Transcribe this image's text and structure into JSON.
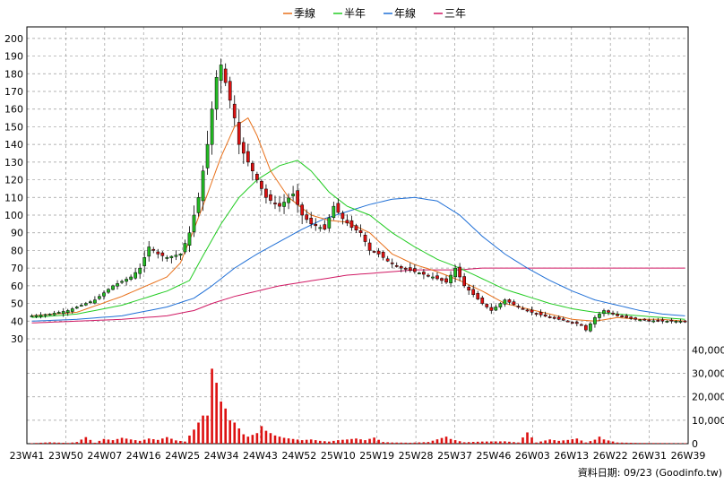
{
  "chart_data": {
    "type": "candlestick",
    "legend": [
      {
        "name": "季線",
        "color": "#e8701a"
      },
      {
        "name": "半年",
        "color": "#22cc22"
      },
      {
        "name": "年線",
        "color": "#1f6fd6"
      },
      {
        "name": "三年",
        "color": "#d01863"
      }
    ],
    "legend_position": "top-center",
    "grid": true,
    "price_axis": {
      "position": "left",
      "ticks": [
        30,
        40,
        50,
        60,
        70,
        80,
        90,
        100,
        110,
        120,
        130,
        140,
        150,
        160,
        170,
        180,
        190,
        200
      ],
      "range": [
        30,
        205
      ]
    },
    "volume_axis": {
      "position": "right",
      "ticks": [
        0,
        10000,
        20000,
        30000,
        40000
      ],
      "tick_labels": [
        "0",
        "10,000",
        "20,000",
        "30,000",
        "40,000"
      ],
      "range": [
        0,
        44000
      ]
    },
    "x_tick_labels": [
      "23W41",
      "23W50",
      "24W07",
      "24W16",
      "24W25",
      "24W34",
      "24W43",
      "24W52",
      "25W10",
      "25W19",
      "25W28",
      "25W37",
      "25W46",
      "26W03",
      "26W13",
      "26W22",
      "26W31",
      "26W39"
    ],
    "colors": {
      "up": "#22bb22",
      "down": "#dd1111",
      "volume": "#dd1111",
      "grid": "#9a9a9a"
    },
    "series_anchor_points": {
      "close": [
        [
          0,
          43
        ],
        [
          4,
          44
        ],
        [
          8,
          46
        ],
        [
          10,
          48
        ],
        [
          14,
          52
        ],
        [
          18,
          60
        ],
        [
          22,
          65
        ],
        [
          24,
          70
        ],
        [
          26,
          82
        ],
        [
          28,
          78
        ],
        [
          30,
          76
        ],
        [
          33,
          78
        ],
        [
          35,
          90
        ],
        [
          37,
          110
        ],
        [
          39,
          140
        ],
        [
          40,
          160
        ],
        [
          41,
          178
        ],
        [
          42,
          185
        ],
        [
          43,
          175
        ],
        [
          44,
          165
        ],
        [
          45,
          155
        ],
        [
          46,
          140
        ],
        [
          48,
          130
        ],
        [
          50,
          120
        ],
        [
          52,
          110
        ],
        [
          55,
          105
        ],
        [
          58,
          112
        ],
        [
          60,
          100
        ],
        [
          62,
          95
        ],
        [
          65,
          92
        ],
        [
          67,
          105
        ],
        [
          69,
          98
        ],
        [
          71,
          93
        ],
        [
          73,
          90
        ],
        [
          75,
          80
        ],
        [
          77,
          78
        ],
        [
          79,
          74
        ],
        [
          82,
          70
        ],
        [
          85,
          68
        ],
        [
          89,
          65
        ],
        [
          92,
          62
        ],
        [
          94,
          70
        ],
        [
          96,
          60
        ],
        [
          98,
          55
        ],
        [
          100,
          50
        ],
        [
          102,
          46
        ],
        [
          105,
          52
        ],
        [
          108,
          48
        ],
        [
          111,
          45
        ],
        [
          115,
          42
        ],
        [
          119,
          40
        ],
        [
          122,
          38
        ],
        [
          123,
          35
        ],
        [
          125,
          42
        ],
        [
          127,
          46
        ],
        [
          130,
          43
        ],
        [
          134,
          41
        ],
        [
          139,
          40
        ],
        [
          143,
          40
        ],
        [
          145,
          40
        ]
      ],
      "ma_quarter": [
        [
          0,
          43
        ],
        [
          10,
          45
        ],
        [
          20,
          54
        ],
        [
          30,
          65
        ],
        [
          33,
          73
        ],
        [
          36,
          92
        ],
        [
          39,
          112
        ],
        [
          42,
          133
        ],
        [
          45,
          150
        ],
        [
          48,
          155
        ],
        [
          50,
          145
        ],
        [
          53,
          125
        ],
        [
          57,
          110
        ],
        [
          62,
          100
        ],
        [
          66,
          97
        ],
        [
          70,
          96
        ],
        [
          75,
          90
        ],
        [
          80,
          78
        ],
        [
          85,
          72
        ],
        [
          90,
          68
        ],
        [
          95,
          63
        ],
        [
          100,
          57
        ],
        [
          105,
          50
        ],
        [
          110,
          47
        ],
        [
          115,
          44
        ],
        [
          120,
          41
        ],
        [
          125,
          40
        ],
        [
          130,
          42
        ],
        [
          135,
          41
        ],
        [
          140,
          41
        ],
        [
          145,
          40
        ]
      ],
      "ma_half": [
        [
          0,
          42
        ],
        [
          10,
          44
        ],
        [
          20,
          49
        ],
        [
          30,
          57
        ],
        [
          35,
          63
        ],
        [
          38,
          77
        ],
        [
          42,
          95
        ],
        [
          46,
          110
        ],
        [
          50,
          120
        ],
        [
          55,
          128
        ],
        [
          59,
          131
        ],
        [
          62,
          125
        ],
        [
          66,
          113
        ],
        [
          70,
          105
        ],
        [
          75,
          100
        ],
        [
          80,
          90
        ],
        [
          85,
          82
        ],
        [
          90,
          75
        ],
        [
          95,
          70
        ],
        [
          100,
          64
        ],
        [
          105,
          58
        ],
        [
          110,
          54
        ],
        [
          115,
          50
        ],
        [
          120,
          47
        ],
        [
          125,
          45
        ],
        [
          130,
          44
        ],
        [
          135,
          43
        ],
        [
          140,
          42
        ],
        [
          145,
          41
        ]
      ],
      "ma_year": [
        [
          0,
          40
        ],
        [
          10,
          41
        ],
        [
          20,
          43
        ],
        [
          30,
          48
        ],
        [
          36,
          53
        ],
        [
          40,
          60
        ],
        [
          45,
          70
        ],
        [
          50,
          78
        ],
        [
          55,
          85
        ],
        [
          60,
          92
        ],
        [
          65,
          98
        ],
        [
          70,
          102
        ],
        [
          75,
          106
        ],
        [
          80,
          109
        ],
        [
          85,
          110
        ],
        [
          90,
          108
        ],
        [
          95,
          100
        ],
        [
          100,
          88
        ],
        [
          105,
          78
        ],
        [
          110,
          70
        ],
        [
          115,
          63
        ],
        [
          120,
          57
        ],
        [
          125,
          52
        ],
        [
          130,
          49
        ],
        [
          135,
          46
        ],
        [
          140,
          44
        ],
        [
          145,
          43
        ]
      ],
      "ma_3year": [
        [
          0,
          39
        ],
        [
          10,
          40
        ],
        [
          20,
          41
        ],
        [
          30,
          43
        ],
        [
          36,
          46
        ],
        [
          40,
          50
        ],
        [
          45,
          54
        ],
        [
          50,
          57
        ],
        [
          55,
          60
        ],
        [
          60,
          62
        ],
        [
          65,
          64
        ],
        [
          70,
          66
        ],
        [
          75,
          67
        ],
        [
          80,
          68
        ],
        [
          85,
          69
        ],
        [
          90,
          69
        ],
        [
          95,
          69
        ],
        [
          100,
          70
        ],
        [
          110,
          70
        ],
        [
          120,
          70
        ],
        [
          130,
          70
        ],
        [
          145,
          70
        ]
      ],
      "volume": [
        [
          0,
          200
        ],
        [
          4,
          600
        ],
        [
          8,
          300
        ],
        [
          10,
          700
        ],
        [
          12,
          2800
        ],
        [
          14,
          400
        ],
        [
          16,
          2000
        ],
        [
          18,
          1500
        ],
        [
          20,
          2500
        ],
        [
          22,
          1800
        ],
        [
          24,
          1200
        ],
        [
          26,
          2200
        ],
        [
          28,
          1600
        ],
        [
          30,
          2800
        ],
        [
          32,
          1400
        ],
        [
          34,
          900
        ],
        [
          36,
          6000
        ],
        [
          37,
          9000
        ],
        [
          38,
          12000
        ],
        [
          39,
          12000
        ],
        [
          40,
          32000
        ],
        [
          41,
          26000
        ],
        [
          42,
          18000
        ],
        [
          43,
          15000
        ],
        [
          44,
          10000
        ],
        [
          45,
          9000
        ],
        [
          46,
          6500
        ],
        [
          47,
          4000
        ],
        [
          48,
          3000
        ],
        [
          50,
          4500
        ],
        [
          51,
          7500
        ],
        [
          52,
          5500
        ],
        [
          54,
          3500
        ],
        [
          56,
          2500
        ],
        [
          58,
          2000
        ],
        [
          60,
          1500
        ],
        [
          62,
          1800
        ],
        [
          64,
          1200
        ],
        [
          66,
          900
        ],
        [
          68,
          1500
        ],
        [
          70,
          1800
        ],
        [
          72,
          2200
        ],
        [
          74,
          1500
        ],
        [
          76,
          2600
        ],
        [
          78,
          700
        ],
        [
          80,
          500
        ],
        [
          84,
          400
        ],
        [
          88,
          700
        ],
        [
          92,
          3000
        ],
        [
          93,
          2000
        ],
        [
          94,
          1500
        ],
        [
          96,
          600
        ],
        [
          100,
          900
        ],
        [
          105,
          1000
        ],
        [
          108,
          500
        ],
        [
          110,
          4800
        ],
        [
          112,
          500
        ],
        [
          115,
          1800
        ],
        [
          117,
          1200
        ],
        [
          119,
          1600
        ],
        [
          121,
          2200
        ],
        [
          123,
          500
        ],
        [
          125,
          1700
        ],
        [
          126,
          3000
        ],
        [
          127,
          1800
        ],
        [
          130,
          500
        ],
        [
          135,
          300
        ],
        [
          140,
          250
        ],
        [
          145,
          200
        ]
      ]
    }
  },
  "footer": {
    "source_text": "資料日期: 09/23  (Goodinfo.tw)"
  }
}
